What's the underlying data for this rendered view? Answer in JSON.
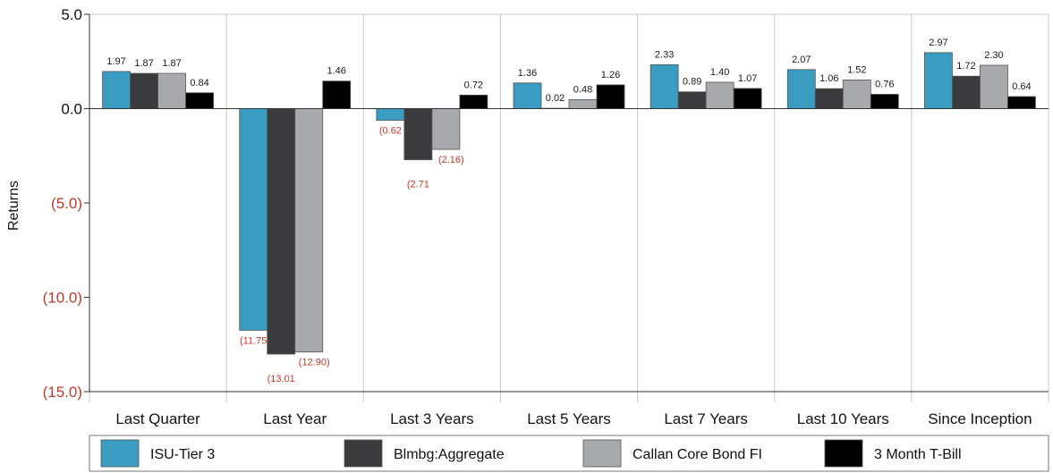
{
  "chart_data": {
    "type": "bar",
    "ylabel": "Returns",
    "ylim": [
      -15,
      5
    ],
    "grid": true,
    "legend_position": "bottom",
    "categories": [
      "Last Quarter",
      "Last Year",
      "Last 3 Years",
      "Last 5 Years",
      "Last 7 Years",
      "Last 10 Years",
      "Since Inception"
    ],
    "y_ticks": [
      {
        "value": 5,
        "label": "5.0"
      },
      {
        "value": 0,
        "label": "0.0"
      },
      {
        "value": -5,
        "label": "(5.0)"
      },
      {
        "value": -10,
        "label": "(10.0)"
      },
      {
        "value": -15,
        "label": "(15.0)"
      }
    ],
    "series": [
      {
        "name": "ISU-Tier 3",
        "color": "#3a9cc0",
        "values": [
          1.97,
          -11.75,
          -0.62,
          1.36,
          2.33,
          2.07,
          2.97
        ],
        "labels": [
          "1.97",
          "(11.75",
          "(0.62",
          "1.36",
          "2.33",
          "2.07",
          "2.97"
        ]
      },
      {
        "name": "Blmbg:Aggregate",
        "color": "#3b3b3e",
        "values": [
          1.87,
          -13.01,
          -2.71,
          0.02,
          0.89,
          1.06,
          1.72
        ],
        "labels": [
          "1.87",
          "(13.01",
          "(2.71",
          "0.02",
          "0.89",
          "1.06",
          "1.72"
        ]
      },
      {
        "name": "Callan Core Bond FI",
        "color": "#a7a9ac",
        "values": [
          1.87,
          -12.9,
          -2.16,
          0.48,
          1.4,
          1.52,
          2.3
        ],
        "labels": [
          "1.87",
          "(12.90)",
          "(2.16)",
          "0.48",
          "1.40",
          "1.52",
          "2.30"
        ]
      },
      {
        "name": "3 Month T-Bill",
        "color": "#000000",
        "values": [
          0.84,
          1.46,
          0.72,
          1.26,
          1.07,
          0.76,
          0.64
        ],
        "labels": [
          "0.84",
          "1.46",
          "0.72",
          "1.26",
          "1.07",
          "0.76",
          "0.64"
        ]
      }
    ],
    "colors": {
      "positive_label": "#1a1a1a",
      "negative_label": "#c0392b",
      "grid": "#c8c8c8",
      "axis": "#333333",
      "bar_stroke": "#555555"
    }
  }
}
